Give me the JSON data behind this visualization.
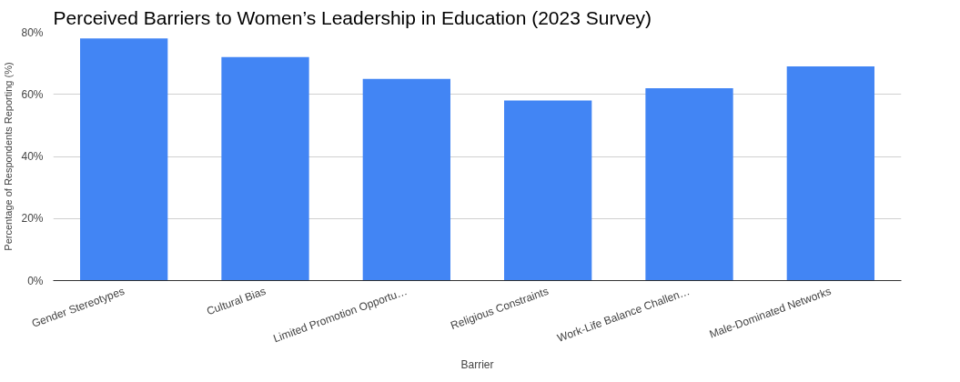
{
  "chart_data": {
    "type": "bar",
    "title": "Perceived Barriers to Women’s Leadership in Education (2023 Survey)",
    "xlabel": "Barrier",
    "ylabel": "Percentage of Respondents Reporting (%)",
    "categories": [
      "Gender Stereotypes",
      "Cultural Bias",
      "Limited Promotion Opportu…",
      "Religious Constraints",
      "Work-Life Balance Challen…",
      "Male-Dominated Networks"
    ],
    "values": [
      78,
      72,
      65,
      58,
      62,
      69
    ],
    "color": "#4285f4",
    "ylim": [
      0,
      80
    ],
    "yticks": [
      {
        "value": 0,
        "label": "0%"
      },
      {
        "value": 20,
        "label": "20%"
      },
      {
        "value": 40,
        "label": "40%"
      },
      {
        "value": 60,
        "label": "60%"
      },
      {
        "value": 80,
        "label": "80%"
      }
    ],
    "grid": "y"
  }
}
